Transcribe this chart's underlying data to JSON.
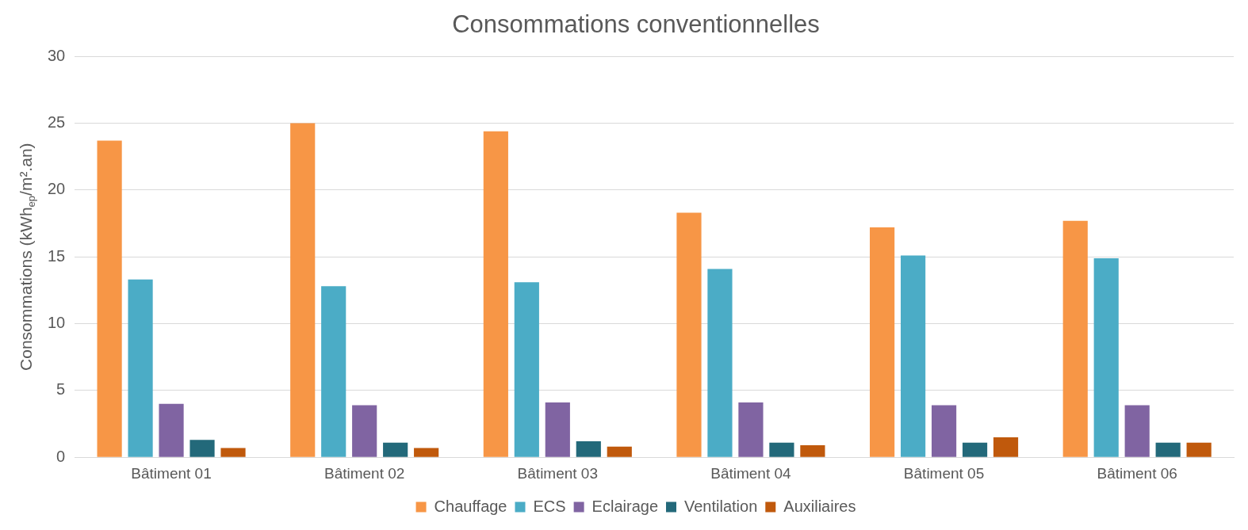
{
  "chart_data": {
    "type": "bar",
    "title": "Consommations conventionnelles",
    "ylabel": "Consommations (kWh$_{ep}$/m².an)",
    "categories": [
      "Bâtiment 01",
      "Bâtiment 02",
      "Bâtiment 03",
      "Bâtiment 04",
      "Bâtiment 05",
      "Bâtiment 06"
    ],
    "series": [
      {
        "name": "Chauffage",
        "color": "#f79646",
        "values": [
          23.7,
          25.0,
          24.4,
          18.3,
          17.2,
          17.7
        ]
      },
      {
        "name": "ECS",
        "color": "#4bacc6",
        "values": [
          13.3,
          12.8,
          13.1,
          14.1,
          15.1,
          14.9
        ]
      },
      {
        "name": "Eclairage",
        "color": "#8064a2",
        "values": [
          4.0,
          3.9,
          4.1,
          4.1,
          3.9,
          3.9
        ]
      },
      {
        "name": "Ventilation",
        "color": "#23697a",
        "values": [
          1.3,
          1.1,
          1.2,
          1.1,
          1.1,
          1.1
        ]
      },
      {
        "name": "Auxiliaires",
        "color": "#c0590c",
        "values": [
          0.7,
          0.7,
          0.8,
          0.9,
          1.5,
          1.1
        ]
      }
    ],
    "ylim": [
      0,
      30
    ],
    "yticks": [
      0,
      5,
      10,
      15,
      20,
      25,
      30
    ],
    "grid": "y",
    "legend": "bottom"
  }
}
